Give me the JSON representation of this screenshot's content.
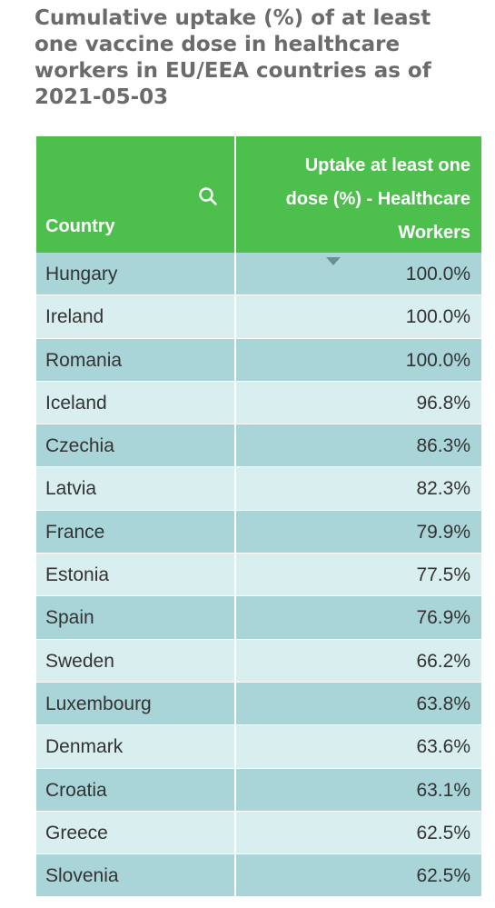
{
  "title": "Cumulative uptake (%) of at least one vaccine dose in healthcare workers in EU/EEA countries as of 2021-05-03",
  "colors": {
    "header_bg": "#4cbf4c",
    "row_odd": "#a9d5d9",
    "row_even": "#d9eeee",
    "title_text": "#6b6b6b"
  },
  "icons": {
    "search": "search-icon",
    "sort": "sort-descending-icon"
  },
  "chart_data": {
    "type": "table",
    "title": "Cumulative uptake (%) of at least one vaccine dose in healthcare workers in EU/EEA countries as of 2021-05-03",
    "columns": [
      "Country",
      "Uptake at least one dose (%) - Healthcare Workers"
    ],
    "header_lines": [
      "Uptake at least one",
      "dose (%) - Healthcare",
      "Workers"
    ],
    "sort": "descending",
    "rows": [
      {
        "country": "Hungary",
        "value": 100.0,
        "display": "100.0%"
      },
      {
        "country": "Ireland",
        "value": 100.0,
        "display": "100.0%"
      },
      {
        "country": "Romania",
        "value": 100.0,
        "display": "100.0%"
      },
      {
        "country": "Iceland",
        "value": 96.8,
        "display": "96.8%"
      },
      {
        "country": "Czechia",
        "value": 86.3,
        "display": "86.3%"
      },
      {
        "country": "Latvia",
        "value": 82.3,
        "display": "82.3%"
      },
      {
        "country": "France",
        "value": 79.9,
        "display": "79.9%"
      },
      {
        "country": "Estonia",
        "value": 77.5,
        "display": "77.5%"
      },
      {
        "country": "Spain",
        "value": 76.9,
        "display": "76.9%"
      },
      {
        "country": "Sweden",
        "value": 66.2,
        "display": "66.2%"
      },
      {
        "country": "Luxembourg",
        "value": 63.8,
        "display": "63.8%"
      },
      {
        "country": "Denmark",
        "value": 63.6,
        "display": "63.6%"
      },
      {
        "country": "Croatia",
        "value": 63.1,
        "display": "63.1%"
      },
      {
        "country": "Greece",
        "value": 62.5,
        "display": "62.5%"
      },
      {
        "country": "Slovenia",
        "value": 62.5,
        "display": "62.5%"
      }
    ]
  }
}
